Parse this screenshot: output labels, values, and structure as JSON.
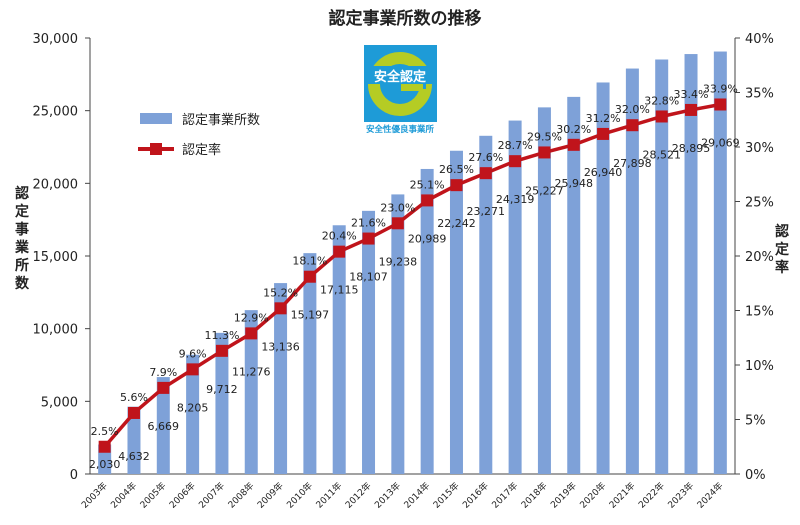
{
  "chart_data": {
    "type": "bar",
    "title": "認定事業所数の推移",
    "ylabel_left": "認定事業所数",
    "ylabel_right": "認定率",
    "ylim_left": [
      0,
      30000
    ],
    "ylim_right": [
      0,
      40
    ],
    "left_ticks": [
      "0",
      "5,000",
      "10,000",
      "15,000",
      "20,000",
      "25,000",
      "30,000"
    ],
    "right_ticks": [
      "0%",
      "5%",
      "10%",
      "15%",
      "20%",
      "25%",
      "30%",
      "35%",
      "40%"
    ],
    "categories": [
      "2003年",
      "2004年",
      "2005年",
      "2006年",
      "2007年",
      "2008年",
      "2009年",
      "2010年",
      "2011年",
      "2012年",
      "2013年",
      "2014年",
      "2015年",
      "2016年",
      "2017年",
      "2018年",
      "2019年",
      "2020年",
      "2021年",
      "2022年",
      "2023年",
      "2024年"
    ],
    "series": [
      {
        "name": "認定事業所数",
        "type": "bar",
        "axis": "left",
        "values": [
          2030,
          4632,
          6669,
          8205,
          9712,
          11276,
          13136,
          15197,
          17115,
          18107,
          19238,
          20989,
          22242,
          23271,
          24319,
          25227,
          25948,
          26940,
          27898,
          28521,
          28895,
          29069
        ],
        "labels": [
          "2,030",
          "4,632",
          "6,669",
          "8,205",
          "9,712",
          "11,276",
          "13,136",
          "15,197",
          "17,115",
          "18,107",
          "19,238",
          "20,989",
          "22,242",
          "23,271",
          "24,319",
          "25,227",
          "25,948",
          "26,940",
          "27,898",
          "28,521",
          "28,895",
          "29,069"
        ]
      },
      {
        "name": "認定率",
        "type": "line",
        "axis": "right",
        "values": [
          2.5,
          5.6,
          7.9,
          9.6,
          11.3,
          12.9,
          15.2,
          18.1,
          20.4,
          21.6,
          23.0,
          25.1,
          26.5,
          27.6,
          28.7,
          29.5,
          30.2,
          31.2,
          32.0,
          32.8,
          33.4,
          33.9
        ],
        "labels": [
          "2.5%",
          "5.6%",
          "7.9%",
          "9.6%",
          "11.3%",
          "12.9%",
          "15.2%",
          "18.1%",
          "20.4%",
          "21.6%",
          "23.0%",
          "25.1%",
          "26.5%",
          "27.6%",
          "28.7%",
          "29.5%",
          "30.2%",
          "31.2%",
          "32.0%",
          "32.8%",
          "33.4%",
          "33.9%"
        ]
      }
    ],
    "colors": {
      "bar": "#7ea1d8",
      "line": "#c0141b",
      "logo_ring": "#b5cc24",
      "logo_bg": "#1e9bd7"
    },
    "logo": {
      "top_text": "安全認定",
      "bottom_text": "安全性優良事業所",
      "icon": "g-mark-logo"
    },
    "legend_position": "upper-left",
    "grid": false
  }
}
